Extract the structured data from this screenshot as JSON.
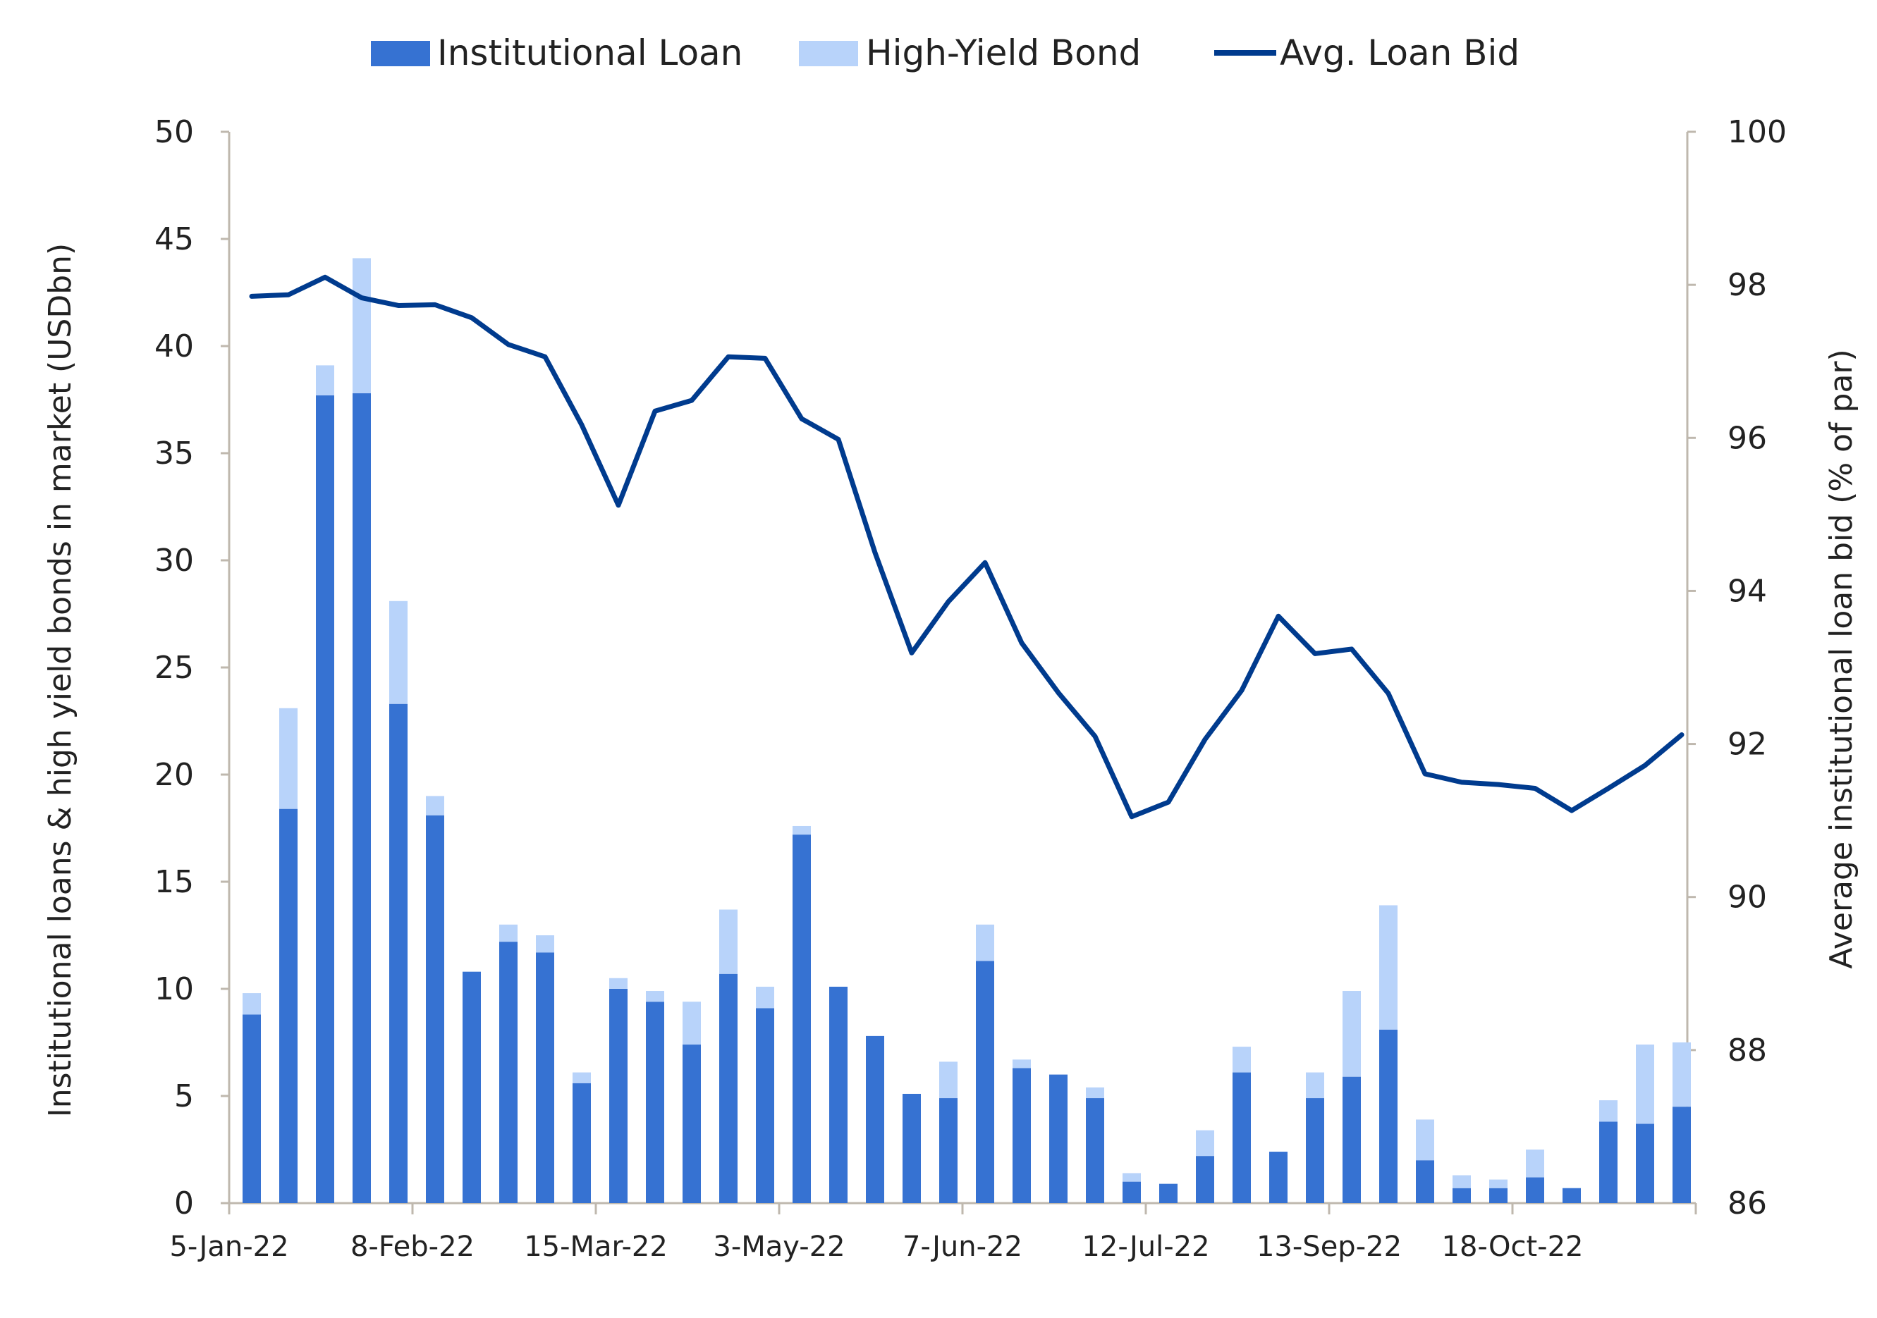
{
  "chart_data": {
    "type": "bar",
    "legend": {
      "position": "top-center",
      "entries": [
        {
          "label": "Institutional Loan",
          "kind": "bar",
          "color": "#3672D2"
        },
        {
          "label": "High-Yield Bond",
          "kind": "bar",
          "color": "#B8D3FA"
        },
        {
          "label": "Avg. Loan Bid",
          "kind": "line",
          "color": "#003B8E"
        }
      ]
    },
    "colors": {
      "institutional_loan": "#3672D2",
      "high_yield_bond": "#B8D3FA",
      "avg_loan_bid": "#003B8E",
      "axis": "#BFB8AE"
    },
    "ylabel_left": "Institutional loans & high yield bonds in market  (USDbn)",
    "ylabel_right": "Average institutional loan bid (% of par)",
    "ylim_left": [
      0,
      50
    ],
    "ylim_right": [
      86,
      100
    ],
    "yticks_left": [
      "0",
      "5",
      "10",
      "15",
      "20",
      "25",
      "30",
      "35",
      "40",
      "45",
      "50"
    ],
    "yticks_right": [
      "86",
      "88",
      "90",
      "92",
      "94",
      "96",
      "98",
      "100"
    ],
    "xtick_labels": [
      {
        "index": 0,
        "label": "5-Jan-22"
      },
      {
        "index": 5,
        "label": "8-Feb-22"
      },
      {
        "index": 10,
        "label": "15-Mar-22"
      },
      {
        "index": 15,
        "label": "3-May-22"
      },
      {
        "index": 20,
        "label": "7-Jun-22"
      },
      {
        "index": 25,
        "label": "12-Jul-22"
      },
      {
        "index": 30,
        "label": "13-Sep-22"
      },
      {
        "index": 35,
        "label": "18-Oct-22"
      }
    ],
    "series": [
      {
        "name": "Institutional Loan",
        "type": "bar",
        "stack": "supply",
        "axis": "left",
        "values": [
          8.8,
          18.4,
          37.7,
          37.8,
          23.3,
          18.1,
          10.8,
          12.2,
          11.7,
          5.6,
          10.0,
          9.4,
          7.4,
          10.7,
          9.1,
          17.2,
          10.1,
          7.8,
          5.1,
          4.9,
          11.3,
          6.3,
          6.0,
          4.9,
          1.0,
          0.9,
          2.2,
          6.1,
          2.4,
          4.9,
          5.9,
          8.1,
          2.0,
          0.7,
          0.7,
          1.2,
          0.7,
          3.8,
          3.7,
          4.5
        ]
      },
      {
        "name": "High-Yield Bond",
        "type": "bar",
        "stack": "supply",
        "axis": "left",
        "values": [
          1.0,
          4.7,
          1.4,
          6.3,
          4.8,
          0.9,
          0.0,
          0.8,
          0.8,
          0.5,
          0.5,
          0.5,
          2.0,
          3.0,
          1.0,
          0.4,
          0.0,
          0.0,
          0.0,
          1.7,
          1.7,
          0.4,
          0.0,
          0.5,
          0.4,
          0.0,
          1.2,
          1.2,
          0.0,
          1.2,
          4.0,
          5.8,
          1.9,
          0.6,
          0.4,
          1.3,
          0.0,
          1.0,
          3.7,
          3.0
        ]
      },
      {
        "name": "Avg. Loan Bid",
        "type": "line",
        "axis": "right",
        "values": [
          97.85,
          97.87,
          98.1,
          97.83,
          97.73,
          97.74,
          97.57,
          97.22,
          97.06,
          96.17,
          95.12,
          96.35,
          96.49,
          97.06,
          97.04,
          96.25,
          95.98,
          94.5,
          93.19,
          93.86,
          94.37,
          93.32,
          92.67,
          92.1,
          91.05,
          91.24,
          92.06,
          92.7,
          93.67,
          93.18,
          93.24,
          92.66,
          91.61,
          91.5,
          91.47,
          91.42,
          91.13,
          91.42,
          91.72,
          92.12
        ]
      }
    ]
  }
}
